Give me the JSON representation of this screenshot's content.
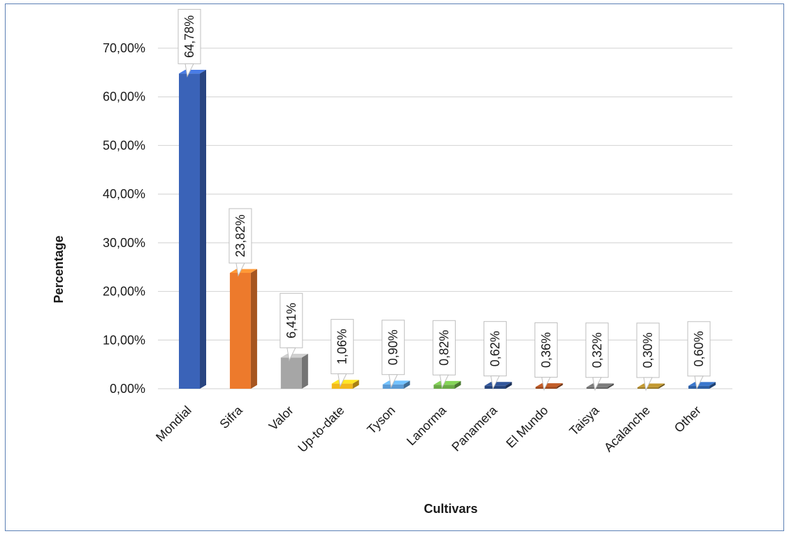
{
  "chart_data": {
    "type": "bar",
    "xlabel": "Cultivars",
    "ylabel": "Percentage",
    "ylim": [
      0,
      70
    ],
    "ytick_values": [
      0,
      10,
      20,
      30,
      40,
      50,
      60,
      70
    ],
    "ytick_labels": [
      "0,00%",
      "10,00%",
      "20,00%",
      "30,00%",
      "40,00%",
      "50,00%",
      "60,00%",
      "70,00%"
    ],
    "grid": true,
    "legend": "none",
    "categories": [
      "Mondial",
      "Sifra",
      "Valor",
      "Up-to-date",
      "Tyson",
      "Lanorma",
      "Panamera",
      "El Mundo",
      "Taisya",
      "Acalanche",
      "Other"
    ],
    "values": [
      64.78,
      23.82,
      6.41,
      1.06,
      0.9,
      0.82,
      0.62,
      0.36,
      0.32,
      0.3,
      0.6
    ],
    "data_labels": [
      "64,78%",
      "23,82%",
      "6,41%",
      "1,06%",
      "0,90%",
      "0,82%",
      "0,62%",
      "0,36%",
      "0,32%",
      "0,30%",
      "0,60%"
    ],
    "colors": [
      "#3a63b8",
      "#ed7a2c",
      "#a6a6a6",
      "#f2b81c",
      "#5b9bd5",
      "#6aaa46",
      "#27457c",
      "#9c4a20",
      "#646464",
      "#9c7a27",
      "#2e5fa4"
    ]
  }
}
